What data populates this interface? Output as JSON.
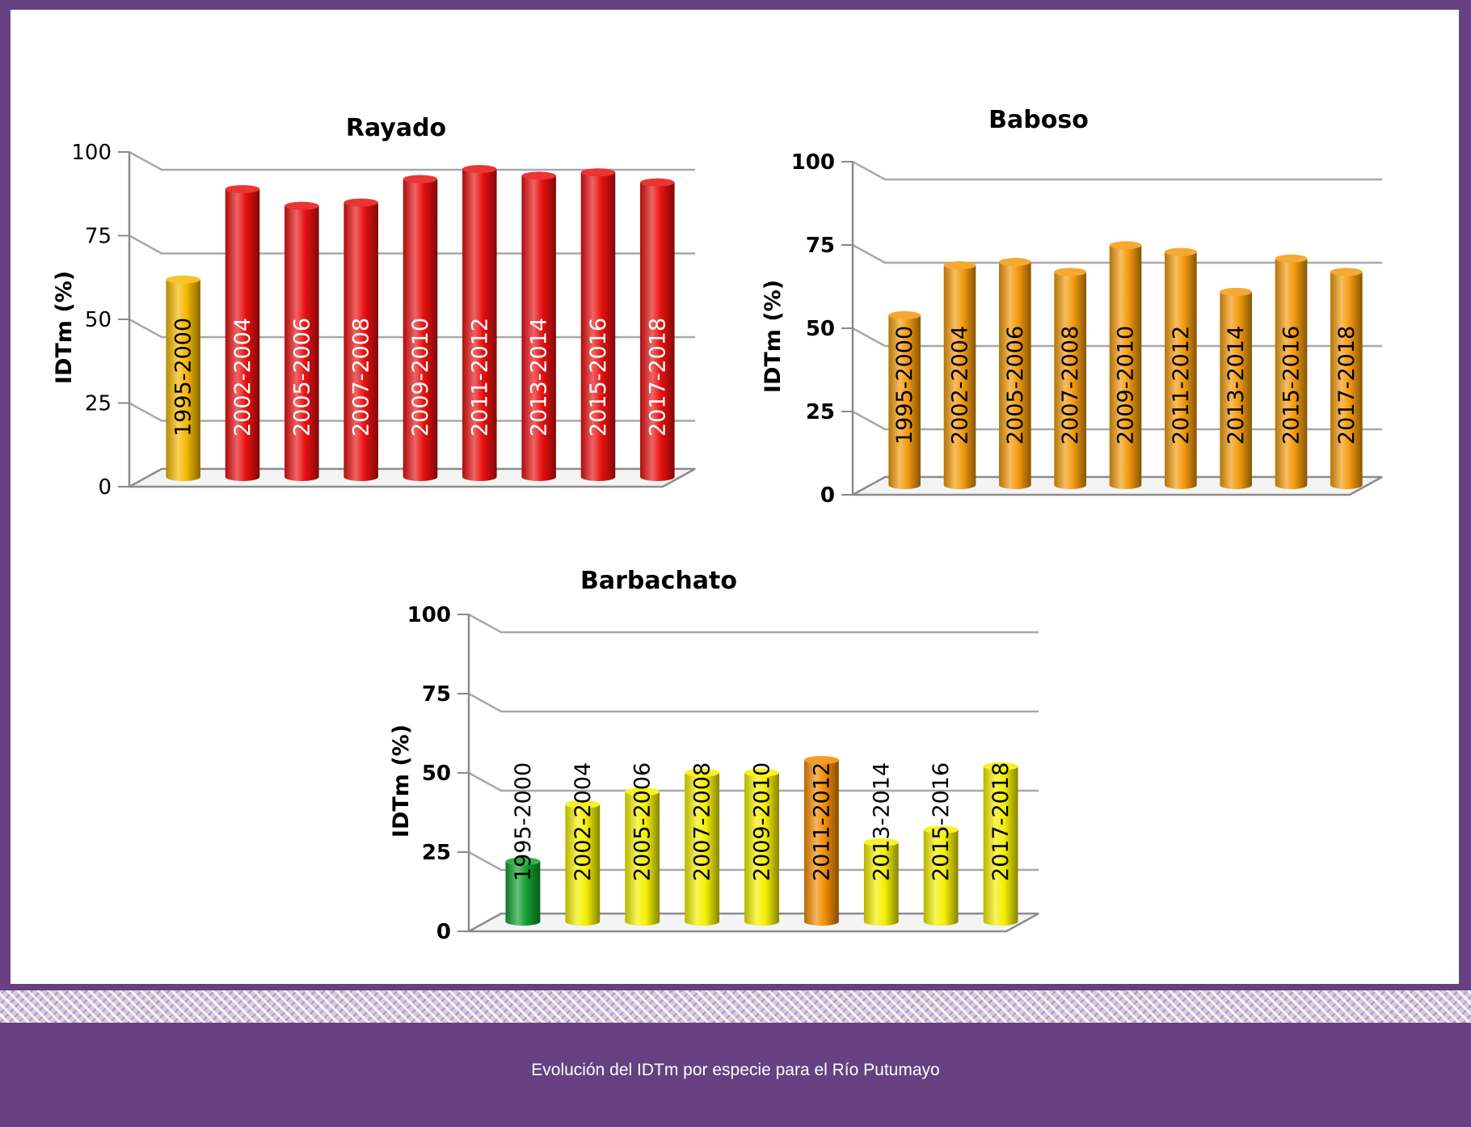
{
  "caption": "Evolución del IDTm por especie para el Río Putumayo",
  "chart_data": [
    {
      "type": "bar",
      "title": "Rayado",
      "ylabel": "IDTm (%)",
      "ylim": [
        0,
        100
      ],
      "yticks": [
        "0",
        "25",
        "50",
        "75",
        "100"
      ],
      "grid": true,
      "label_color": "#ffffff",
      "categories": [
        "1995-2000",
        "2002-2004",
        "2005-2006",
        "2007-2008",
        "2009-2010",
        "2011-2012",
        "2013-2014",
        "2015-2016",
        "2017-2018"
      ],
      "values": [
        59,
        86,
        81,
        82,
        89,
        92,
        90,
        91,
        88
      ],
      "colors": [
        "#f5b800",
        "#e81010",
        "#e81010",
        "#e81010",
        "#e81010",
        "#e81010",
        "#e81010",
        "#e81010",
        "#e81010"
      ],
      "label_colors": [
        "#000000",
        "#ffffff",
        "#ffffff",
        "#ffffff",
        "#ffffff",
        "#ffffff",
        "#ffffff",
        "#ffffff",
        "#ffffff"
      ]
    },
    {
      "type": "bar",
      "title": "Baboso",
      "ylabel": "IDTm (%)",
      "ylim": [
        0,
        100
      ],
      "yticks": [
        "0",
        "25",
        "50",
        "75",
        "100"
      ],
      "grid": true,
      "categories": [
        "1995-2000",
        "2002-2004",
        "2005-2006",
        "2007-2008",
        "2009-2010",
        "2011-2012",
        "2013-2014",
        "2015-2016",
        "2017-2018"
      ],
      "values": [
        51,
        66,
        67,
        64,
        72,
        70,
        58,
        68,
        64
      ],
      "colors": [
        "#f39a0c",
        "#f39a0c",
        "#f39a0c",
        "#f39a0c",
        "#f39a0c",
        "#f39a0c",
        "#f39a0c",
        "#f39a0c",
        "#f39a0c"
      ],
      "label_colors": [
        "#000000",
        "#000000",
        "#000000",
        "#000000",
        "#000000",
        "#000000",
        "#000000",
        "#000000",
        "#000000"
      ]
    },
    {
      "type": "bar",
      "title": "Barbachato",
      "ylabel": "IDTm (%)",
      "ylim": [
        0,
        100
      ],
      "yticks": [
        "0",
        "25",
        "50",
        "75",
        "100"
      ],
      "grid": true,
      "categories": [
        "1995-2000",
        "2002-2004",
        "2005-2006",
        "2007-2008",
        "2009-2010",
        "2011-2012",
        "2013-2014",
        "2015-2016",
        "2017-2018"
      ],
      "values": [
        19,
        37,
        41,
        47,
        47,
        51,
        25,
        29,
        49
      ],
      "colors": [
        "#10a030",
        "#f4f000",
        "#f4f000",
        "#f4f000",
        "#f4f000",
        "#f18c00",
        "#f4f000",
        "#f4f000",
        "#f4f000"
      ],
      "label_colors": [
        "#000000",
        "#000000",
        "#000000",
        "#000000",
        "#000000",
        "#000000",
        "#000000",
        "#000000",
        "#000000"
      ]
    }
  ]
}
